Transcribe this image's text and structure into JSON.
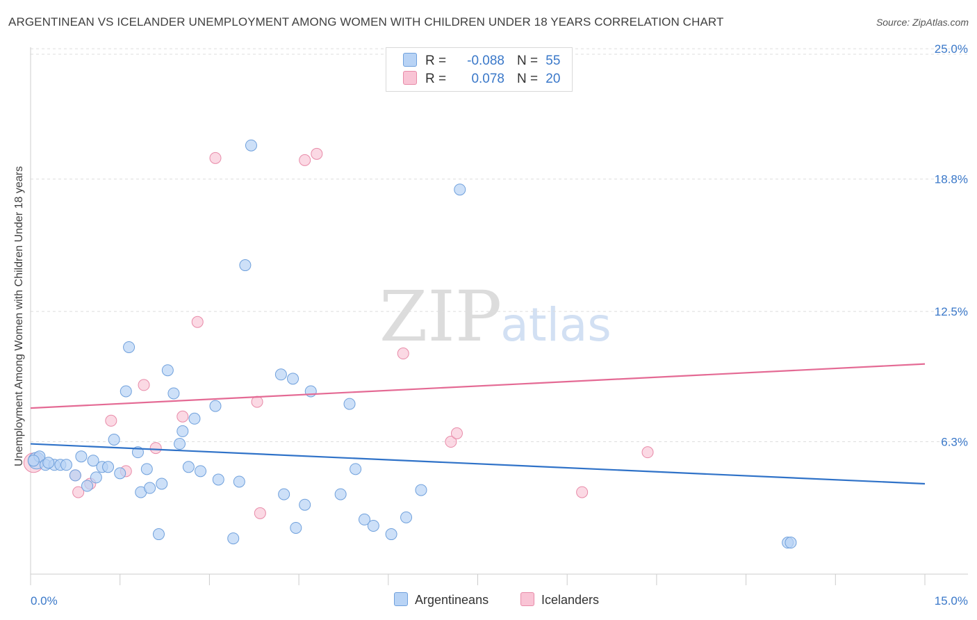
{
  "title": "ARGENTINEAN VS ICELANDER UNEMPLOYMENT AMONG WOMEN WITH CHILDREN UNDER 18 YEARS CORRELATION CHART",
  "source": "Source: ZipAtlas.com",
  "watermark": {
    "zip": "ZIP",
    "atlas": "atlas"
  },
  "legend": {
    "r_label": "R =",
    "n_label": "N =",
    "argentineans": {
      "r": "-0.088",
      "n": "55"
    },
    "icelanders": {
      "r": "0.078",
      "n": "20"
    }
  },
  "bottom_legend": {
    "argentineans": "Argentineans",
    "icelanders": "Icelanders"
  },
  "colors": {
    "argentineans_fill": "#b8d3f5",
    "argentineans_stroke": "#6fa0dc",
    "argentineans_line": "#2f72c8",
    "icelanders_fill": "#f9c4d5",
    "icelanders_stroke": "#e88aa8",
    "icelanders_line": "#e46a94",
    "grid": "#dddddd",
    "tick_label": "#3a78c9"
  },
  "chart_data": {
    "type": "scatter",
    "title": "ARGENTINEAN VS ICELANDER UNEMPLOYMENT AMONG WOMEN WITH CHILDREN UNDER 18 YEARS CORRELATION CHART",
    "xlabel": "",
    "ylabel": "Unemployment Among Women with Children Under 18 years",
    "xlim": [
      0,
      15
    ],
    "ylim": [
      0,
      25.6
    ],
    "x_tick_labels": [
      "0.0%",
      "15.0%"
    ],
    "y_ticks": [
      6.3,
      12.5,
      18.8,
      25.0
    ],
    "y_tick_labels": [
      "6.3%",
      "12.5%",
      "18.8%",
      "25.0%"
    ],
    "grid": true,
    "series": [
      {
        "name": "Argentineans",
        "r": -0.088,
        "n": 55,
        "trend": {
          "x": [
            0,
            15
          ],
          "y": [
            6.2,
            4.3
          ]
        },
        "points": [
          {
            "x": 0.1,
            "y": 5.4,
            "big": true
          },
          {
            "x": 0.15,
            "y": 5.6
          },
          {
            "x": 0.25,
            "y": 5.2
          },
          {
            "x": 0.4,
            "y": 5.2
          },
          {
            "x": 0.5,
            "y": 5.2
          },
          {
            "x": 0.6,
            "y": 5.2
          },
          {
            "x": 0.75,
            "y": 4.7
          },
          {
            "x": 0.85,
            "y": 5.6
          },
          {
            "x": 0.95,
            "y": 4.2
          },
          {
            "x": 1.05,
            "y": 5.4
          },
          {
            "x": 1.1,
            "y": 4.6
          },
          {
            "x": 1.2,
            "y": 5.1
          },
          {
            "x": 1.3,
            "y": 5.1
          },
          {
            "x": 1.4,
            "y": 6.4
          },
          {
            "x": 1.5,
            "y": 4.8
          },
          {
            "x": 1.6,
            "y": 8.7
          },
          {
            "x": 1.65,
            "y": 10.8
          },
          {
            "x": 1.8,
            "y": 5.8
          },
          {
            "x": 1.85,
            "y": 3.9
          },
          {
            "x": 1.95,
            "y": 5.0
          },
          {
            "x": 2.0,
            "y": 4.1
          },
          {
            "x": 2.15,
            "y": 1.9
          },
          {
            "x": 2.2,
            "y": 4.3
          },
          {
            "x": 2.3,
            "y": 9.7
          },
          {
            "x": 2.4,
            "y": 8.6
          },
          {
            "x": 2.5,
            "y": 6.2
          },
          {
            "x": 2.55,
            "y": 6.8
          },
          {
            "x": 2.65,
            "y": 5.1
          },
          {
            "x": 2.75,
            "y": 7.4
          },
          {
            "x": 2.85,
            "y": 4.9
          },
          {
            "x": 3.1,
            "y": 8.0
          },
          {
            "x": 3.15,
            "y": 4.5
          },
          {
            "x": 3.4,
            "y": 1.7
          },
          {
            "x": 3.5,
            "y": 4.4
          },
          {
            "x": 3.6,
            "y": 14.7
          },
          {
            "x": 3.7,
            "y": 20.4
          },
          {
            "x": 4.2,
            "y": 9.5
          },
          {
            "x": 4.25,
            "y": 3.8
          },
          {
            "x": 4.4,
            "y": 9.3
          },
          {
            "x": 4.45,
            "y": 2.2
          },
          {
            "x": 4.6,
            "y": 3.3
          },
          {
            "x": 4.7,
            "y": 8.7
          },
          {
            "x": 5.2,
            "y": 3.8
          },
          {
            "x": 5.35,
            "y": 8.1
          },
          {
            "x": 5.45,
            "y": 5.0
          },
          {
            "x": 5.6,
            "y": 2.6
          },
          {
            "x": 5.75,
            "y": 2.3
          },
          {
            "x": 6.05,
            "y": 1.9
          },
          {
            "x": 6.3,
            "y": 2.7
          },
          {
            "x": 6.55,
            "y": 4.0
          },
          {
            "x": 7.2,
            "y": 18.3
          },
          {
            "x": 12.7,
            "y": 1.5
          },
          {
            "x": 12.75,
            "y": 1.5
          },
          {
            "x": 0.05,
            "y": 5.4
          },
          {
            "x": 0.3,
            "y": 5.3
          }
        ]
      },
      {
        "name": "Icelanders",
        "r": 0.078,
        "n": 20,
        "trend": {
          "x": [
            0,
            15
          ],
          "y": [
            7.9,
            10.0
          ]
        },
        "points": [
          {
            "x": 0.05,
            "y": 5.3,
            "big": true
          },
          {
            "x": 0.75,
            "y": 4.7
          },
          {
            "x": 0.8,
            "y": 3.9
          },
          {
            "x": 1.0,
            "y": 4.3
          },
          {
            "x": 1.35,
            "y": 7.3
          },
          {
            "x": 1.6,
            "y": 4.9
          },
          {
            "x": 1.9,
            "y": 9.0
          },
          {
            "x": 2.1,
            "y": 6.0
          },
          {
            "x": 2.55,
            "y": 7.5
          },
          {
            "x": 2.8,
            "y": 12.0
          },
          {
            "x": 3.1,
            "y": 19.8
          },
          {
            "x": 3.8,
            "y": 8.2
          },
          {
            "x": 3.85,
            "y": 2.9
          },
          {
            "x": 4.6,
            "y": 19.7
          },
          {
            "x": 4.8,
            "y": 20.0
          },
          {
            "x": 6.25,
            "y": 10.5
          },
          {
            "x": 7.05,
            "y": 6.3
          },
          {
            "x": 7.15,
            "y": 6.7
          },
          {
            "x": 9.25,
            "y": 3.9
          },
          {
            "x": 10.35,
            "y": 5.8
          }
        ]
      }
    ]
  }
}
